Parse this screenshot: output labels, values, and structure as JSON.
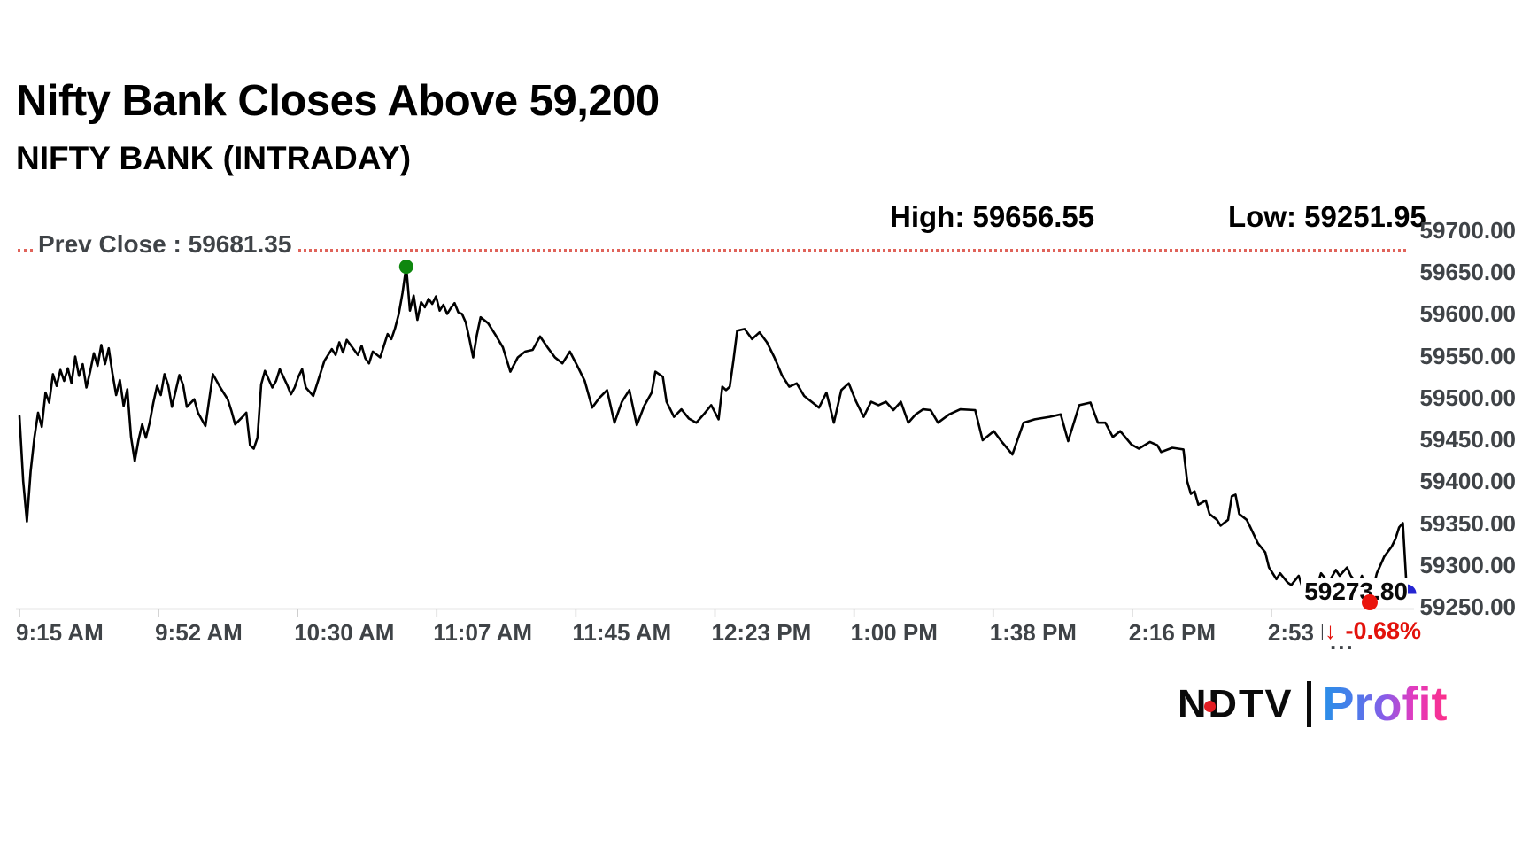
{
  "header": {
    "title": "Nifty Bank Closes Above 59,200",
    "subtitle": "NIFTY BANK (INTRADAY)"
  },
  "stats": {
    "high_label": "High: 59656.55",
    "low_label": "Low: 59251.95"
  },
  "prev_close": {
    "label": "Prev Close : 59681.35"
  },
  "last_trade": {
    "price": "59273.80",
    "change_arrow": "↓",
    "change_pct": "-0.68%",
    "truncation_dots": "..."
  },
  "logo": {
    "ndtv": "NDTV",
    "profit": "Profit"
  },
  "colors": {
    "line": "#000000",
    "axis_text": "#3f4347",
    "prev_close_line": "#e0635a",
    "high_marker_green": "#0e870e",
    "low_marker_red": "#ea140c",
    "close_marker_blue": "#2525d2",
    "change_red": "#e3120b",
    "axis_line_gray": "#cccccc"
  },
  "chart_data": {
    "type": "line",
    "title": "NIFTY BANK (INTRADAY)",
    "series_name": "NIFTY BANK",
    "x_unit": "minutes after 9:15 AM",
    "x_tick_labels": [
      "9:15 AM",
      "9:52 AM",
      "10:30 AM",
      "11:07 AM",
      "11:45 AM",
      "12:23 PM",
      "1:00 PM",
      "1:38 PM",
      "2:16 PM",
      "2:53 PM"
    ],
    "x_tick_minutes": [
      0,
      37,
      75,
      112,
      150,
      188,
      225,
      263,
      301,
      338
    ],
    "y_tick_labels": [
      "59700.00",
      "59650.00",
      "59600.00",
      "59550.00",
      "59500.00",
      "59450.00",
      "59400.00",
      "59350.00",
      "59300.00",
      "59250.00"
    ],
    "y_tick_values": [
      59700,
      59650,
      59600,
      59550,
      59500,
      59450,
      59400,
      59350,
      59300,
      59250
    ],
    "ylim": [
      59250,
      59700
    ],
    "session_minutes": 375,
    "grid": "off",
    "y_axis_side": "right",
    "prev_close": 59681.35,
    "high": {
      "time_min": 104,
      "value": 59656.55
    },
    "low": {
      "time_min": 363,
      "value": 59251.95
    },
    "close": {
      "time_min": 373,
      "value": 59273.8
    },
    "points": [
      [
        0,
        59478
      ],
      [
        1,
        59400
      ],
      [
        2,
        59352
      ],
      [
        3,
        59412
      ],
      [
        4,
        59452
      ],
      [
        5,
        59482
      ],
      [
        6,
        59465
      ],
      [
        7,
        59506
      ],
      [
        8,
        59494
      ],
      [
        9,
        59528
      ],
      [
        10,
        59514
      ],
      [
        11,
        59533
      ],
      [
        12,
        59520
      ],
      [
        13,
        59535
      ],
      [
        14,
        59517
      ],
      [
        15,
        59549
      ],
      [
        16,
        59526
      ],
      [
        17,
        59540
      ],
      [
        18,
        59512
      ],
      [
        19,
        59531
      ],
      [
        20,
        59553
      ],
      [
        21,
        59538
      ],
      [
        22,
        59563
      ],
      [
        23,
        59540
      ],
      [
        24,
        59559
      ],
      [
        25,
        59529
      ],
      [
        26,
        59503
      ],
      [
        27,
        59521
      ],
      [
        28,
        59490
      ],
      [
        29,
        59510
      ],
      [
        30,
        59453
      ],
      [
        31,
        59424
      ],
      [
        32,
        59449
      ],
      [
        33,
        59468
      ],
      [
        34,
        59452
      ],
      [
        35,
        59470
      ],
      [
        36,
        59494
      ],
      [
        37,
        59514
      ],
      [
        38,
        59503
      ],
      [
        39,
        59528
      ],
      [
        40,
        59515
      ],
      [
        41,
        59489
      ],
      [
        43,
        59527
      ],
      [
        44,
        59515
      ],
      [
        45,
        59489
      ],
      [
        47,
        59498
      ],
      [
        48,
        59482
      ],
      [
        50,
        59466
      ],
      [
        52,
        59528
      ],
      [
        54,
        59512
      ],
      [
        56,
        59498
      ],
      [
        57,
        59484
      ],
      [
        58,
        59468
      ],
      [
        60,
        59477
      ],
      [
        61,
        59482
      ],
      [
        62,
        59443
      ],
      [
        63,
        59439
      ],
      [
        64,
        59452
      ],
      [
        65,
        59516
      ],
      [
        66,
        59532
      ],
      [
        67,
        59522
      ],
      [
        68,
        59512
      ],
      [
        69,
        59520
      ],
      [
        70,
        59534
      ],
      [
        72,
        59515
      ],
      [
        73,
        59504
      ],
      [
        74,
        59512
      ],
      [
        75,
        59525
      ],
      [
        76,
        59534
      ],
      [
        77,
        59512
      ],
      [
        79,
        59502
      ],
      [
        80,
        59516
      ],
      [
        81,
        59530
      ],
      [
        82,
        59544
      ],
      [
        84,
        59558
      ],
      [
        85,
        59551
      ],
      [
        86,
        59566
      ],
      [
        87,
        59554
      ],
      [
        88,
        59569
      ],
      [
        90,
        59557
      ],
      [
        91,
        59551
      ],
      [
        92,
        59562
      ],
      [
        93,
        59547
      ],
      [
        94,
        59541
      ],
      [
        95,
        59555
      ],
      [
        97,
        59548
      ],
      [
        98,
        59562
      ],
      [
        99,
        59576
      ],
      [
        100,
        59570
      ],
      [
        101,
        59583
      ],
      [
        102,
        59600
      ],
      [
        103,
        59625
      ],
      [
        104,
        59656.55
      ],
      [
        105,
        59604
      ],
      [
        106,
        59622
      ],
      [
        107,
        59593
      ],
      [
        108,
        59614
      ],
      [
        109,
        59608
      ],
      [
        110,
        59618
      ],
      [
        111,
        59612
      ],
      [
        112,
        59621
      ],
      [
        113,
        59604
      ],
      [
        114,
        59611
      ],
      [
        115,
        59600
      ],
      [
        116,
        59607
      ],
      [
        117,
        59613
      ],
      [
        118,
        59602
      ],
      [
        119,
        59600
      ],
      [
        120,
        59590
      ],
      [
        121,
        59570
      ],
      [
        122,
        59548
      ],
      [
        123,
        59575
      ],
      [
        124,
        59596
      ],
      [
        126,
        59589
      ],
      [
        128,
        59575
      ],
      [
        130,
        59560
      ],
      [
        132,
        59531
      ],
      [
        134,
        59548
      ],
      [
        136,
        59555
      ],
      [
        138,
        59557
      ],
      [
        140,
        59573
      ],
      [
        142,
        59560
      ],
      [
        144,
        59548
      ],
      [
        146,
        59541
      ],
      [
        148,
        59555
      ],
      [
        150,
        59538
      ],
      [
        152,
        59520
      ],
      [
        154,
        59488
      ],
      [
        156,
        59500
      ],
      [
        158,
        59509
      ],
      [
        160,
        59470
      ],
      [
        162,
        59495
      ],
      [
        164,
        59509
      ],
      [
        166,
        59467
      ],
      [
        168,
        59490
      ],
      [
        170,
        59506
      ],
      [
        171,
        59531
      ],
      [
        173,
        59525
      ],
      [
        174,
        59495
      ],
      [
        176,
        59477
      ],
      [
        178,
        59486
      ],
      [
        180,
        59475
      ],
      [
        182,
        59470
      ],
      [
        184,
        59480
      ],
      [
        186,
        59491
      ],
      [
        188,
        59474
      ],
      [
        189,
        59513
      ],
      [
        190,
        59509
      ],
      [
        191,
        59513
      ],
      [
        192,
        59545
      ],
      [
        193,
        59580
      ],
      [
        195,
        59582
      ],
      [
        197,
        59570
      ],
      [
        199,
        59578
      ],
      [
        201,
        59566
      ],
      [
        203,
        59548
      ],
      [
        205,
        59527
      ],
      [
        207,
        59513
      ],
      [
        209,
        59517
      ],
      [
        211,
        59502
      ],
      [
        213,
        59495
      ],
      [
        215,
        59488
      ],
      [
        217,
        59506
      ],
      [
        219,
        59470
      ],
      [
        221,
        59509
      ],
      [
        223,
        59517
      ],
      [
        225,
        59495
      ],
      [
        227,
        59477
      ],
      [
        229,
        59495
      ],
      [
        231,
        59491
      ],
      [
        233,
        59495
      ],
      [
        235,
        59485
      ],
      [
        237,
        59495
      ],
      [
        239,
        59470
      ],
      [
        241,
        59480
      ],
      [
        243,
        59486
      ],
      [
        245,
        59485
      ],
      [
        247,
        59470
      ],
      [
        250,
        59480
      ],
      [
        253,
        59486
      ],
      [
        257,
        59485
      ],
      [
        259,
        59449
      ],
      [
        262,
        59460
      ],
      [
        264,
        59448
      ],
      [
        267,
        59432
      ],
      [
        270,
        59470
      ],
      [
        273,
        59474
      ],
      [
        277,
        59477
      ],
      [
        280,
        59480
      ],
      [
        282,
        59448
      ],
      [
        285,
        59491
      ],
      [
        288,
        59494
      ],
      [
        290,
        59470
      ],
      [
        292,
        59470
      ],
      [
        294,
        59453
      ],
      [
        296,
        59460
      ],
      [
        299,
        59444
      ],
      [
        301,
        59439
      ],
      [
        304,
        59447
      ],
      [
        306,
        59443
      ],
      [
        307,
        59435
      ],
      [
        310,
        59440
      ],
      [
        313,
        59438
      ],
      [
        314,
        59400
      ],
      [
        315,
        59385
      ],
      [
        316,
        59388
      ],
      [
        317,
        59372
      ],
      [
        319,
        59377
      ],
      [
        320,
        59361
      ],
      [
        322,
        59354
      ],
      [
        323,
        59347
      ],
      [
        325,
        59354
      ],
      [
        326,
        59382
      ],
      [
        327,
        59384
      ],
      [
        328,
        59361
      ],
      [
        330,
        59354
      ],
      [
        331,
        59345
      ],
      [
        333,
        59326
      ],
      [
        335,
        59315
      ],
      [
        336,
        59297
      ],
      [
        338,
        59283
      ],
      [
        339,
        59290
      ],
      [
        341,
        59279
      ],
      [
        342,
        59276
      ],
      [
        344,
        59287
      ],
      [
        345,
        59273
      ],
      [
        347,
        59265
      ],
      [
        349,
        59276
      ],
      [
        350,
        59290
      ],
      [
        352,
        59279
      ],
      [
        354,
        59294
      ],
      [
        355,
        59287
      ],
      [
        357,
        59297
      ],
      [
        358,
        59287
      ],
      [
        360,
        59276
      ],
      [
        361,
        59287
      ],
      [
        362,
        59270
      ],
      [
        363,
        59251.95
      ],
      [
        364,
        59272
      ],
      [
        365,
        59290
      ],
      [
        366,
        59300
      ],
      [
        367,
        59310
      ],
      [
        369,
        59322
      ],
      [
        370,
        59331
      ],
      [
        371,
        59345
      ],
      [
        372,
        59350
      ],
      [
        373,
        59273.8
      ]
    ]
  }
}
